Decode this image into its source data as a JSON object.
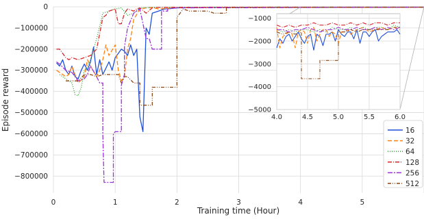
{
  "chart_data": [
    {
      "type": "line",
      "title": "",
      "xlabel": "Training time (Hour)",
      "ylabel": "Episode reward",
      "xlim": [
        0,
        6
      ],
      "ylim": [
        -880000,
        0
      ],
      "x_ticks": [
        0,
        1,
        2,
        3,
        4,
        5
      ],
      "x_tick_labels": [
        "0",
        "1",
        "2",
        "3",
        "4",
        "5"
      ],
      "y_ticks": [
        0,
        -100000,
        -200000,
        -300000,
        -400000,
        -500000,
        -600000,
        -700000,
        -800000
      ],
      "y_tick_labels": [
        "0",
        "−100000",
        "−200000",
        "−300000",
        "−400000",
        "−500000",
        "−600000",
        "−700000",
        "−800000"
      ],
      "grid": true,
      "legend_position": "bottom-right",
      "legend": [
        "16",
        "32",
        "64",
        "128",
        "256",
        "512"
      ],
      "series": [
        {
          "name": "16",
          "color": "#1f4fd8",
          "dash": "solid",
          "x": [
            0.05,
            0.1,
            0.15,
            0.2,
            0.25,
            0.3,
            0.35,
            0.4,
            0.45,
            0.5,
            0.55,
            0.6,
            0.65,
            0.7,
            0.75,
            0.8,
            0.85,
            0.9,
            0.95,
            1.0,
            1.05,
            1.1,
            1.15,
            1.2,
            1.25,
            1.3,
            1.35,
            1.4,
            1.45,
            1.5,
            1.55,
            1.6,
            1.7,
            1.8,
            1.9,
            2.0,
            2.2,
            2.5,
            3.0,
            6.0
          ],
          "y": [
            -265000,
            -280000,
            -250000,
            -300000,
            -320000,
            -280000,
            -330000,
            -340000,
            -300000,
            -270000,
            -300000,
            -260000,
            -190000,
            -320000,
            -250000,
            -320000,
            -290000,
            -260000,
            -300000,
            -240000,
            -220000,
            -200000,
            -210000,
            -230000,
            -180000,
            -230000,
            -200000,
            -520000,
            -590000,
            -100000,
            -130000,
            -30000,
            -20000,
            -10000,
            -8000,
            -5000,
            -4000,
            -3000,
            -2000,
            -1500
          ]
        },
        {
          "name": "32",
          "color": "#ff7f0e",
          "dash": "6,3",
          "x": [
            0.05,
            0.1,
            0.2,
            0.25,
            0.3,
            0.4,
            0.5,
            0.55,
            0.6,
            0.7,
            0.75,
            0.8,
            0.85,
            0.9,
            1.0,
            1.05,
            1.1,
            1.15,
            1.2,
            1.25,
            1.3,
            1.4,
            1.5,
            1.6,
            1.7,
            2.0,
            2.5,
            6.0
          ],
          "y": [
            -300000,
            -310000,
            -330000,
            -320000,
            -280000,
            -360000,
            -330000,
            -250000,
            -280000,
            -330000,
            -300000,
            -250000,
            -180000,
            -230000,
            -180000,
            -300000,
            -350000,
            -330000,
            -200000,
            -150000,
            -60000,
            -10000,
            -5000,
            -3000,
            -10000,
            -5000,
            -3000,
            -2000
          ]
        },
        {
          "name": "64",
          "color": "#2ca02c",
          "dash": "1,2",
          "x": [
            0.1,
            0.2,
            0.3,
            0.35,
            0.4,
            0.45,
            0.5,
            0.55,
            0.6,
            0.65,
            0.7,
            0.75,
            0.8,
            0.9,
            1.0,
            1.1,
            1.2,
            1.3,
            1.4,
            1.5,
            1.6,
            2.0,
            6.0
          ],
          "y": [
            -320000,
            -340000,
            -360000,
            -415000,
            -420000,
            -380000,
            -300000,
            -280000,
            -250000,
            -200000,
            -150000,
            -90000,
            -30000,
            -20000,
            -10000,
            -5000,
            -40000,
            -30000,
            -5000,
            -4000,
            -3000,
            -2500,
            -1500
          ]
        },
        {
          "name": "128",
          "color": "#d62728",
          "dash": "6,2,1,2",
          "x": [
            0.05,
            0.1,
            0.2,
            0.25,
            0.3,
            0.4,
            0.5,
            0.6,
            0.7,
            0.8,
            0.85,
            0.9,
            1.0,
            1.05,
            1.1,
            1.15,
            1.2,
            1.3,
            1.35,
            1.4,
            1.5,
            1.6,
            1.7,
            2.0,
            6.0
          ],
          "y": [
            -200000,
            -200000,
            -240000,
            -250000,
            -240000,
            -250000,
            -240000,
            -230000,
            -200000,
            -50000,
            -40000,
            -20000,
            -10000,
            -80000,
            -80000,
            -30000,
            -10000,
            -20000,
            -10000,
            -5000,
            -30000,
            -5000,
            -3000,
            -2000,
            -1500
          ]
        },
        {
          "name": "256",
          "color": "#9b30d9",
          "dash": "7,2,2,2",
          "x": [
            0.05,
            0.1,
            0.2,
            0.3,
            0.35,
            0.4,
            0.5,
            0.55,
            0.6,
            0.7,
            0.75,
            0.8,
            0.8,
            0.82,
            0.97,
            0.97,
            1.0,
            1.05,
            1.1,
            1.1,
            1.15,
            1.15,
            1.2,
            1.3,
            1.4,
            1.5,
            1.55,
            1.6,
            1.7,
            1.75,
            1.75,
            1.85,
            1.85,
            2.0,
            6.0
          ],
          "y": [
            -260000,
            -270000,
            -300000,
            -310000,
            -330000,
            -350000,
            -340000,
            -320000,
            -280000,
            -330000,
            -360000,
            -360000,
            -600000,
            -830000,
            -830000,
            -600000,
            -590000,
            -590000,
            -590000,
            -370000,
            -320000,
            -190000,
            -100000,
            -30000,
            -10000,
            -150000,
            -150000,
            -200000,
            -200000,
            -200000,
            -20000,
            -20000,
            -10000,
            -5000,
            -1500
          ]
        },
        {
          "name": "512",
          "color": "#8b4513",
          "dash": "5,2,1,2,1,2",
          "x": [
            0.2,
            0.3,
            0.4,
            0.5,
            0.6,
            0.7,
            0.8,
            0.9,
            1.0,
            1.05,
            1.1,
            1.15,
            1.2,
            1.3,
            1.4,
            1.4,
            1.6,
            1.6,
            2.0,
            2.0,
            2.1,
            2.2,
            2.3,
            2.4,
            2.5,
            2.6,
            2.7,
            2.8,
            2.8,
            3.0,
            6.0
          ],
          "y": [
            -350000,
            -350000,
            -350000,
            -320000,
            -320000,
            -330000,
            -320000,
            -320000,
            -320000,
            -320000,
            -360000,
            -330000,
            -330000,
            -360000,
            -360000,
            -465000,
            -465000,
            -380000,
            -380000,
            -50000,
            -10000,
            -20000,
            -20000,
            -20000,
            -20000,
            -30000,
            -30000,
            -30000,
            -5000,
            -2000,
            -1500
          ]
        }
      ]
    },
    {
      "type": "line",
      "title": "",
      "xlabel": "",
      "ylabel": "",
      "xlim": [
        4.0,
        6.0
      ],
      "ylim": [
        -5000,
        -800
      ],
      "x_ticks": [
        4.0,
        4.5,
        5.0,
        5.5,
        6.0
      ],
      "x_tick_labels": [
        "4.0",
        "4.5",
        "5.0",
        "5.5",
        "6.0"
      ],
      "y_ticks": [
        -1000,
        -2000,
        -3000,
        -4000,
        -5000
      ],
      "y_tick_labels": [
        "−1000",
        "−2000",
        "−3000",
        "−4000",
        "−5000"
      ],
      "grid": true,
      "series": [
        {
          "name": "16",
          "color": "#1f4fd8",
          "dash": "solid",
          "x": [
            4.0,
            4.05,
            4.1,
            4.15,
            4.2,
            4.25,
            4.3,
            4.35,
            4.4,
            4.45,
            4.5,
            4.55,
            4.6,
            4.65,
            4.7,
            4.75,
            4.8,
            4.85,
            4.9,
            4.95,
            5.0,
            5.05,
            5.1,
            5.15,
            5.2,
            5.25,
            5.3,
            5.35,
            5.4,
            5.45,
            5.5,
            5.55,
            5.6,
            5.65,
            5.7,
            5.75,
            5.8,
            5.85,
            5.9,
            5.95,
            6.0
          ],
          "y": [
            -2300,
            -1900,
            -2100,
            -1800,
            -1700,
            -2000,
            -1800,
            -1600,
            -1900,
            -2100,
            -1800,
            -1700,
            -2400,
            -1700,
            -1800,
            -2200,
            -1700,
            -1700,
            -1600,
            -2000,
            -1500,
            -1700,
            -1800,
            -1600,
            -1600,
            -1900,
            -1500,
            -2100,
            -1600,
            -1600,
            -1800,
            -1600,
            -1500,
            -2000,
            -1800,
            -1700,
            -1600,
            -1600,
            -1600,
            -1500,
            -1700
          ]
        },
        {
          "name": "32",
          "color": "#ff7f0e",
          "dash": "6,3",
          "x": [
            4.0,
            4.05,
            4.1,
            4.15,
            4.2,
            4.25,
            4.3,
            4.35,
            4.4,
            4.45,
            4.5,
            4.55,
            4.6,
            4.65,
            4.7,
            4.75,
            4.8,
            4.85,
            4.9,
            4.95,
            5.0,
            5.05,
            5.1,
            5.15,
            5.2,
            5.3,
            5.4,
            5.5,
            5.6,
            5.7,
            5.8,
            5.9,
            6.0
          ],
          "y": [
            -1400,
            -2300,
            -1800,
            -1700,
            -1600,
            -1700,
            -2300,
            -1600,
            -1500,
            -1600,
            -2100,
            -1500,
            -1400,
            -2000,
            -1700,
            -1500,
            -1500,
            -1800,
            -1600,
            -1700,
            -2100,
            -1600,
            -1600,
            -1500,
            -1700,
            -1500,
            -1400,
            -1600,
            -1500,
            -1400,
            -1500,
            -1400,
            -1500
          ]
        },
        {
          "name": "64",
          "color": "#2ca02c",
          "dash": "1,2",
          "x": [
            4.0,
            4.1,
            4.2,
            4.3,
            4.4,
            4.5,
            4.6,
            4.7,
            4.8,
            4.9,
            5.0,
            5.1,
            5.2,
            5.3,
            5.4,
            5.5,
            5.6,
            5.7,
            5.8,
            5.9,
            6.0
          ],
          "y": [
            -1500,
            -1600,
            -1500,
            -1600,
            -1500,
            -1500,
            -1600,
            -1500,
            -1600,
            -1400,
            -1500,
            -1500,
            -1400,
            -1500,
            -1400,
            -1500,
            -1400,
            -1400,
            -1500,
            -1300,
            -1400
          ]
        },
        {
          "name": "128",
          "color": "#d62728",
          "dash": "6,2,1,2",
          "x": [
            4.0,
            4.1,
            4.2,
            4.3,
            4.4,
            4.5,
            4.6,
            4.7,
            4.8,
            4.9,
            5.0,
            5.1,
            5.2,
            5.3,
            5.4,
            5.5,
            5.6,
            5.7,
            5.8,
            5.9,
            6.0
          ],
          "y": [
            -1300,
            -1400,
            -1300,
            -1400,
            -1300,
            -1300,
            -1200,
            -1300,
            -1300,
            -1200,
            -1300,
            -1300,
            -1200,
            -1300,
            -1200,
            -1300,
            -1200,
            -1200,
            -1300,
            -1200,
            -1200
          ]
        },
        {
          "name": "256",
          "color": "#9b30d9",
          "dash": "7,2,2,2",
          "x": [
            4.0,
            4.1,
            4.2,
            4.3,
            4.4,
            4.5,
            4.6,
            4.7,
            4.8,
            4.9,
            5.0,
            5.1,
            5.2,
            5.3,
            5.4,
            5.5,
            5.6,
            5.7,
            5.8,
            5.9,
            6.0
          ],
          "y": [
            -1500,
            -1500,
            -1600,
            -1500,
            -1500,
            -1400,
            -1500,
            -1600,
            -1500,
            -1500,
            -1400,
            -1500,
            -1500,
            -1400,
            -1500,
            -1500,
            -1400,
            -1500,
            -1400,
            -1500,
            -1400
          ]
        },
        {
          "name": "512",
          "color": "#8b4513",
          "dash": "5,2,1,2,1,2",
          "x": [
            4.0,
            4.1,
            4.2,
            4.3,
            4.4,
            4.4,
            4.5,
            4.6,
            4.7,
            4.7,
            4.8,
            4.9,
            5.0,
            5.0,
            5.1,
            5.2,
            5.3,
            5.4,
            5.5,
            5.6,
            5.7,
            5.8,
            5.9,
            6.0
          ],
          "y": [
            -1600,
            -1700,
            -1600,
            -1700,
            -1600,
            -3650,
            -3650,
            -3650,
            -3650,
            -2850,
            -2850,
            -2850,
            -2850,
            -1600,
            -1600,
            -1500,
            -1600,
            -1500,
            -1500,
            -1500,
            -1500,
            -1500,
            -1400,
            -1400
          ]
        }
      ]
    }
  ]
}
